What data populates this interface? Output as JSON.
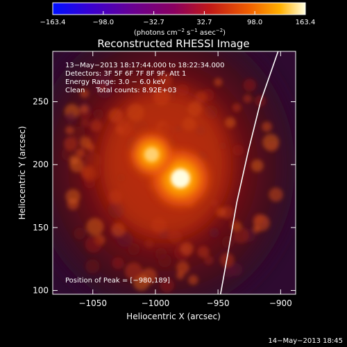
{
  "chart_data": {
    "type": "heatmap",
    "title": "Reconstructed RHESSI Image",
    "xlabel": "Heliocentric X (arcsec)",
    "ylabel": "Heliocentric Y (arcsec)",
    "xlim": [
      -1082,
      -888
    ],
    "ylim": [
      97,
      290
    ],
    "xticks": [
      -1050,
      -1000,
      -950,
      -900
    ],
    "xtick_labels": [
      "−1050",
      "−1000",
      "−950",
      "−900"
    ],
    "yticks": [
      100,
      150,
      200,
      250
    ],
    "ytick_labels": [
      "100",
      "150",
      "200",
      "250"
    ],
    "colorbar": {
      "range": [
        -163.4,
        163.4
      ],
      "ticks": [
        -163.4,
        -98.0,
        -32.7,
        32.7,
        98.0,
        163.4
      ],
      "tick_labels": [
        "−163.4",
        "−98.0",
        "−32.7",
        "32.7",
        "98.0",
        "163.4"
      ],
      "label_main": "(photons cm",
      "label_exp1": "−2",
      "label_mid": " s",
      "label_exp2": "−1",
      "label_asec": " asec",
      "label_exp3": "−2",
      "label_end": ")"
    },
    "annotations": {
      "time_range": "13−May−2013 18:17:44.000 to 18:22:34.000",
      "detectors": "Detectors: 3F 5F 6F 7F 8F 9F, Att 1",
      "energy": "Energy Range: 3.0 − 6.0 keV",
      "clean": "Clean     Total counts: 8.92E+03",
      "peak": "Position of Peak = [−980,189]"
    },
    "sources": [
      {
        "x": -980,
        "y": 189,
        "peak": 163.4
      },
      {
        "x": -1003,
        "y": 208,
        "peak": 115
      }
    ],
    "limb_curve": [
      [
        -948,
        97
      ],
      [
        -942,
        130
      ],
      [
        -935,
        170
      ],
      [
        -926,
        210
      ],
      [
        -916,
        250
      ],
      [
        -902,
        290
      ]
    ]
  },
  "footer_timestamp": "14−May−2013 18:45",
  "colors": {
    "colormap": [
      "#000000",
      "#2a1040",
      "#400d7a",
      "#1a00ff",
      "#5a0099",
      "#9a0070",
      "#cc2020",
      "#ee6a00",
      "#ffb000",
      "#ffff80",
      "#ffffff"
    ]
  }
}
